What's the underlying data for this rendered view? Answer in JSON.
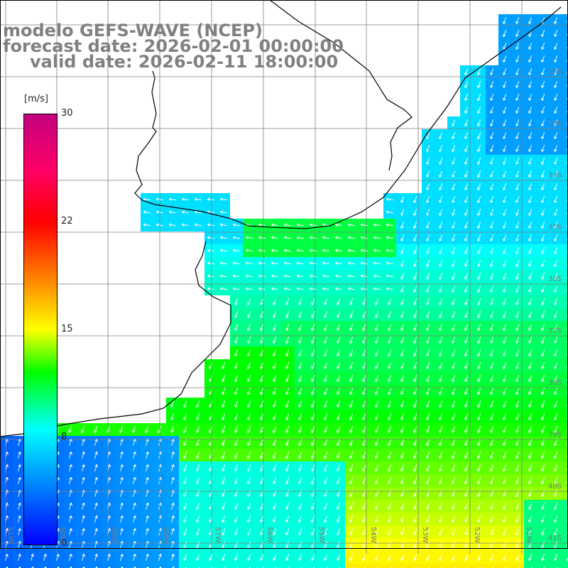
{
  "title": {
    "line1": "modelo GEFS-WAVE (NCEP)",
    "line2": "forecast date: 2026-02-01 00:00:00",
    "line3": "valid date: 2026-02-11 18:00:00"
  },
  "colorbar": {
    "unit": "[m/s]",
    "ticks": [
      {
        "label": "30",
        "value": 30
      },
      {
        "label": "22",
        "value": 22
      },
      {
        "label": "15",
        "value": 15
      },
      {
        "label": "8",
        "value": 8
      },
      {
        "label": "0",
        "value": 0
      }
    ],
    "min": 0,
    "max": 30,
    "colors": [
      "#0000ff",
      "#00ffff",
      "#00ff00",
      "#ffff00",
      "#ff8000",
      "#ff0000",
      "#c2007f"
    ]
  },
  "lat_labels": [
    "32S",
    "33S",
    "34S",
    "35S",
    "36S",
    "37S",
    "38S",
    "39S",
    "40S",
    "41S"
  ],
  "lon_labels": [
    "61W",
    "60W",
    "59W",
    "58W",
    "57W",
    "56W",
    "55W",
    "54W",
    "53W",
    "52W",
    "51W"
  ],
  "map_colors": {
    "land": "#ffffff",
    "coastline": "#000000",
    "grid": "#808080",
    "arrow": "#ffffff"
  }
}
